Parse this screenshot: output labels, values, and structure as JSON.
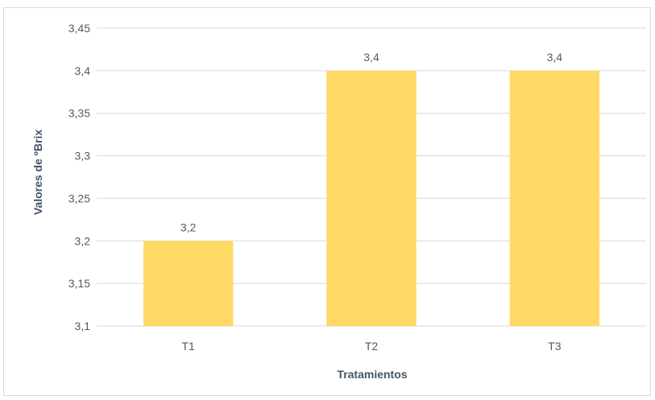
{
  "chart_data": {
    "type": "bar",
    "title": "",
    "xlabel": "Tratamientos",
    "ylabel": "Valores de ºBrix",
    "categories": [
      "T1",
      "T2",
      "T3"
    ],
    "values": [
      3.2,
      3.4,
      3.4
    ],
    "data_labels": [
      "3,2",
      "3,4",
      "3,4"
    ],
    "ylim": [
      3.1,
      3.45
    ],
    "yticks": [
      3.1,
      3.15,
      3.2,
      3.25,
      3.3,
      3.35,
      3.4,
      3.45
    ],
    "ytick_labels": [
      "3,1",
      "3,15",
      "3,2",
      "3,25",
      "3,3",
      "3,35",
      "3,4",
      "3,45"
    ],
    "grid": true,
    "legend": "none",
    "colors": {
      "bar": "#FFD966",
      "grid": "#D9D9D9",
      "axis_text": "#595959",
      "axis_title": "#44546A"
    }
  }
}
